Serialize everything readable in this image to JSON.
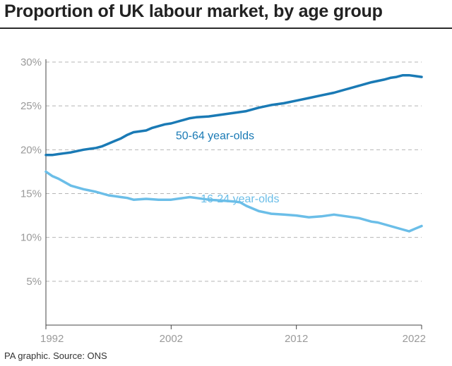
{
  "header": {
    "title": "Proportion of UK labour market, by age group"
  },
  "footer": {
    "source": "PA graphic. Source: ONS"
  },
  "chart_data": {
    "type": "line",
    "title": "Proportion of UK labour market, by age group",
    "xlabel": "",
    "ylabel": "",
    "xlim": [
      1992,
      2022
    ],
    "ylim": [
      0,
      30
    ],
    "yticks": [
      5,
      10,
      15,
      20,
      25,
      30
    ],
    "ytick_labels": [
      "5%",
      "10%",
      "15%",
      "20%",
      "25%",
      "30%"
    ],
    "xticks": [
      1992,
      2002,
      2012,
      2022
    ],
    "xtick_labels": [
      "1992",
      "2002",
      "2012",
      "2022"
    ],
    "grid": "horizontal dashed",
    "legend": "none (inline series labels)",
    "series": [
      {
        "name": "50-64 year-olds",
        "color": "#1a7ab5",
        "x": [
          1992,
          1992.5,
          1993,
          1993.5,
          1994,
          1995,
          1996,
          1996.5,
          1997,
          1997.5,
          1998,
          1998.5,
          1999,
          2000,
          2000.5,
          2001,
          2001.5,
          2002,
          2002.5,
          2003,
          2003.5,
          2004,
          2005,
          2006,
          2007,
          2008,
          2009,
          2010,
          2011,
          2012,
          2013,
          2014,
          2015,
          2016,
          2017,
          2018,
          2019,
          2019.5,
          2020,
          2020.5,
          2021,
          2021.5,
          2022
        ],
        "y": [
          19.4,
          19.4,
          19.5,
          19.6,
          19.7,
          20.0,
          20.2,
          20.4,
          20.7,
          21.0,
          21.3,
          21.7,
          22.0,
          22.2,
          22.5,
          22.7,
          22.9,
          23.0,
          23.2,
          23.4,
          23.6,
          23.7,
          23.8,
          24.0,
          24.2,
          24.4,
          24.8,
          25.1,
          25.3,
          25.6,
          25.9,
          26.2,
          26.5,
          26.9,
          27.3,
          27.7,
          28.0,
          28.2,
          28.3,
          28.5,
          28.5,
          28.4,
          28.3
        ]
      },
      {
        "name": "16-24 year-olds",
        "color": "#6bbee8",
        "x": [
          1992,
          1992.5,
          1993,
          1993.5,
          1994,
          1995,
          1996,
          1996.5,
          1997,
          1997.5,
          1998,
          1998.5,
          1999,
          2000,
          2001,
          2002,
          2003,
          2003.5,
          2004,
          2005,
          2006,
          2007,
          2007.5,
          2008,
          2009,
          2010,
          2011,
          2012,
          2013,
          2014,
          2015,
          2016,
          2017,
          2018,
          2018.5,
          2019,
          2019.5,
          2020,
          2020.5,
          2021,
          2021.5,
          2022
        ],
        "y": [
          17.5,
          17.0,
          16.7,
          16.3,
          15.9,
          15.5,
          15.2,
          15.0,
          14.8,
          14.7,
          14.6,
          14.5,
          14.3,
          14.4,
          14.3,
          14.3,
          14.5,
          14.6,
          14.5,
          14.3,
          14.2,
          14.1,
          14.0,
          13.6,
          13.0,
          12.7,
          12.6,
          12.5,
          12.3,
          12.4,
          12.6,
          12.4,
          12.2,
          11.8,
          11.7,
          11.5,
          11.3,
          11.1,
          10.9,
          10.7,
          11.0,
          11.3
        ]
      }
    ],
    "annotations": [
      {
        "text": "50-64 year-olds",
        "x": 2005.5,
        "y": 21.2
      },
      {
        "text": "16-24 year-olds",
        "x": 2007.5,
        "y": 14.0
      }
    ]
  }
}
